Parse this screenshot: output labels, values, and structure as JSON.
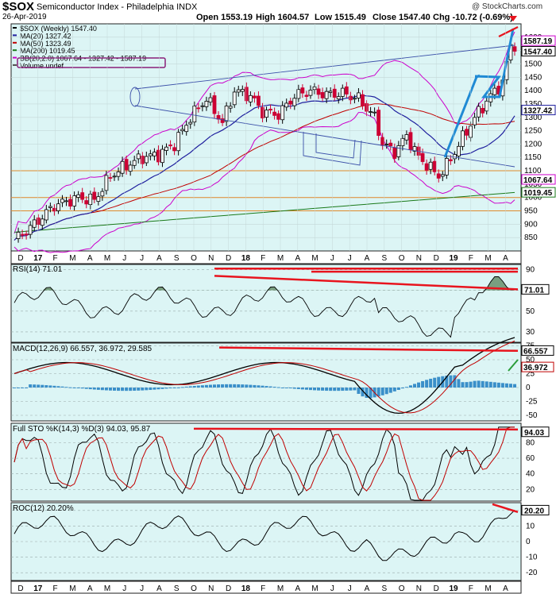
{
  "header": {
    "symbol": "$SOX",
    "name": "Semiconductor Index - Philadelphia INDX",
    "date": "26-Apr-2019",
    "open": "Open 1553.19",
    "high": "High 1604.57",
    "low": "Low 1515.49",
    "close": "Close 1547.40",
    "chg": "Chg -10.72 (-0.69%)",
    "watermark": "@ StockCharts.com"
  },
  "legend": [
    {
      "label": "$SOX (Weekly) 1547.40",
      "color": "#000000"
    },
    {
      "label": "MA(20) 1327.42",
      "color": "#1f1f9e"
    },
    {
      "label": "MA(50) 1323.49",
      "color": "#c00000"
    },
    {
      "label": "MA(200) 1019.45",
      "color": "#1a7a1a"
    },
    {
      "label": "BB(20,2.0) 1067.64 - 1327.42 - 1587.19",
      "color": "#cc00cc"
    },
    {
      "label": "Volume undef",
      "color": "#555555"
    }
  ],
  "panels": {
    "rsi_label": "RSI(14) 71.01",
    "macd_label": "MACD(12,26,9) 66.557, 36.972, 29.585",
    "sto_label": "Full STO %K(14,3) %D(3) 94.03, 95.87",
    "roc_label": "ROC(12) 20.20%"
  },
  "colors": {
    "panel_bg": "#dcf5f5",
    "up": "#000000",
    "down": "#cc0033",
    "ma20": "#1f1f9e",
    "ma50": "#c00000",
    "ma200": "#1a7a1a",
    "bb": "#cc00cc",
    "annotation_red": "#e8141e",
    "annotation_blue": "#1f8ad4",
    "hline_orange": "#e08a2c",
    "trendline_blue": "#3a4fa8"
  },
  "chart_data": [
    {
      "type": "candlestick",
      "title": "$SOX Semiconductor Index - Philadelphia INDX",
      "frequency": "Weekly",
      "x_labels": [
        "D",
        "17",
        "F",
        "M",
        "A",
        "M",
        "J",
        "J",
        "A",
        "S",
        "O",
        "N",
        "D",
        "18",
        "F",
        "M",
        "A",
        "M",
        "J",
        "J",
        "A",
        "S",
        "O",
        "N",
        "D",
        "19",
        "F",
        "M",
        "A"
      ],
      "ylim": [
        800,
        1650
      ],
      "ticks": [
        850,
        900,
        950,
        1000,
        1050,
        1100,
        1150,
        1200,
        1250,
        1300,
        1350,
        1400,
        1450,
        1500,
        1550,
        1600
      ],
      "last_values": {
        "close": 1547.4,
        "bb_upper": 1587.19,
        "ma20": 1327.42,
        "bb_lower": 1067.64,
        "ma200": 1019.45
      },
      "close_series": [
        {
          "date": "2016-12",
          "close": 850
        },
        {
          "date": "2017-01",
          "close": 920
        },
        {
          "date": "2017-02",
          "close": 975
        },
        {
          "date": "2017-03",
          "close": 1000
        },
        {
          "date": "2017-04",
          "close": 990
        },
        {
          "date": "2017-05",
          "close": 1090
        },
        {
          "date": "2017-06",
          "close": 1130
        },
        {
          "date": "2017-07",
          "close": 1150
        },
        {
          "date": "2017-08",
          "close": 1155
        },
        {
          "date": "2017-09",
          "close": 1200
        },
        {
          "date": "2017-10",
          "close": 1300
        },
        {
          "date": "2017-11",
          "close": 1370
        },
        {
          "date": "2017-12",
          "close": 1280
        },
        {
          "date": "2018-01",
          "close": 1400
        },
        {
          "date": "2018-02",
          "close": 1390
        },
        {
          "date": "2018-03",
          "close": 1370
        },
        {
          "date": "2018-04",
          "close": 1300
        },
        {
          "date": "2018-05",
          "close": 1370
        },
        {
          "date": "2018-06",
          "close": 1400
        },
        {
          "date": "2018-07",
          "close": 1385
        },
        {
          "date": "2018-08",
          "close": 1390
        },
        {
          "date": "2018-09",
          "close": 1370
        },
        {
          "date": "2018-10",
          "close": 1200
        },
        {
          "date": "2018-11",
          "close": 1180
        },
        {
          "date": "2018-12",
          "close": 1080
        },
        {
          "date": "2019-01",
          "close": 1200
        },
        {
          "date": "2019-02",
          "close": 1360
        },
        {
          "date": "2019-03",
          "close": 1420
        },
        {
          "date": "2019-04",
          "close": 1547.4
        }
      ]
    },
    {
      "type": "line",
      "title": "RSI(14)",
      "ylim": [
        20,
        95
      ],
      "ticks": [
        90,
        70,
        50,
        30
      ],
      "last": 71.01
    },
    {
      "type": "line",
      "title": "MACD(12,26,9)",
      "ylim": [
        -60,
        80
      ],
      "ticks": [
        75,
        50,
        25,
        0,
        -25,
        -50
      ],
      "values": {
        "macd": 66.557,
        "signal": 36.972,
        "hist": 29.585
      }
    },
    {
      "type": "line",
      "title": "Full STO %K(14,3) %D(3)",
      "ylim": [
        5,
        105
      ],
      "ticks": [
        80,
        60,
        40,
        20
      ],
      "values": {
        "k": 94.03,
        "d": 95.87
      }
    },
    {
      "type": "line",
      "title": "ROC(12)",
      "ylim": [
        -25,
        25
      ],
      "ticks": [
        20,
        10,
        0,
        -10,
        -20
      ],
      "last": 20.2
    }
  ]
}
